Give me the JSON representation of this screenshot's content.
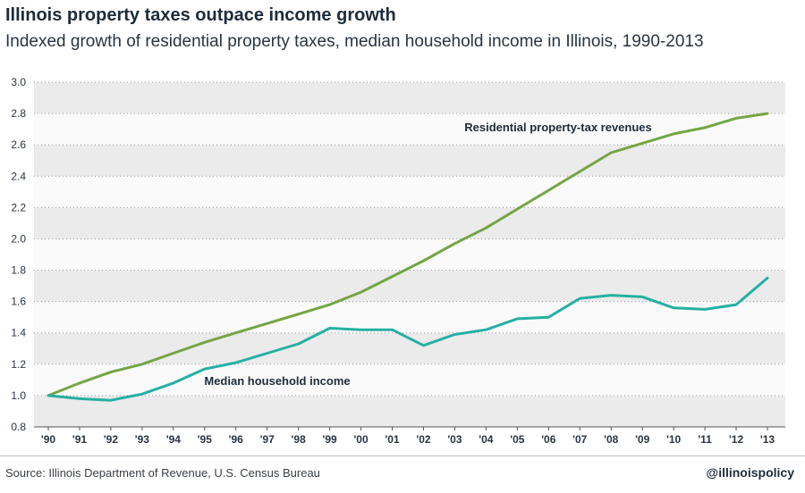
{
  "header": {
    "title": "Illinois property taxes outpace income growth",
    "subtitle": "Indexed growth of residential property taxes, median household income in Illinois, 1990-2013"
  },
  "footer": {
    "source": "Source: Illinois Department of Revenue, U.S. Census Bureau",
    "handle": "@illinoispolicy"
  },
  "colors": {
    "property_tax": "#74a545",
    "income": "#25b0a2",
    "band_dark": "#ebebeb",
    "band_light": "#fafafa"
  },
  "chart_data": {
    "type": "line",
    "x": [
      "'90",
      "'91",
      "'92",
      "'93",
      "'94",
      "'95",
      "'96",
      "'97",
      "'98",
      "'99",
      "'00",
      "'01",
      "'02",
      "'03",
      "'04",
      "'05",
      "'06",
      "'07",
      "'08",
      "'09",
      "'10",
      "'11",
      "'12",
      "'13"
    ],
    "ylim": [
      0.8,
      3.0
    ],
    "yticks": [
      "0.8",
      "1.0",
      "1.2",
      "1.4",
      "1.6",
      "1.8",
      "2.0",
      "2.2",
      "2.4",
      "2.6",
      "2.8",
      "3.0"
    ],
    "grid": true,
    "series": [
      {
        "name": "Residential property-tax revenues",
        "color": "#74a545",
        "values": [
          1.0,
          1.08,
          1.15,
          1.2,
          1.27,
          1.34,
          1.4,
          1.46,
          1.52,
          1.58,
          1.66,
          1.76,
          1.86,
          1.97,
          2.07,
          2.19,
          2.31,
          2.43,
          2.55,
          2.61,
          2.67,
          2.71,
          2.77,
          2.8
        ]
      },
      {
        "name": "Median household income",
        "color": "#25b0a2",
        "values": [
          1.0,
          0.98,
          0.97,
          1.01,
          1.08,
          1.17,
          1.21,
          1.27,
          1.33,
          1.43,
          1.42,
          1.42,
          1.32,
          1.39,
          1.42,
          1.49,
          1.5,
          1.62,
          1.64,
          1.63,
          1.56,
          1.55,
          1.58,
          1.75
        ]
      }
    ]
  }
}
